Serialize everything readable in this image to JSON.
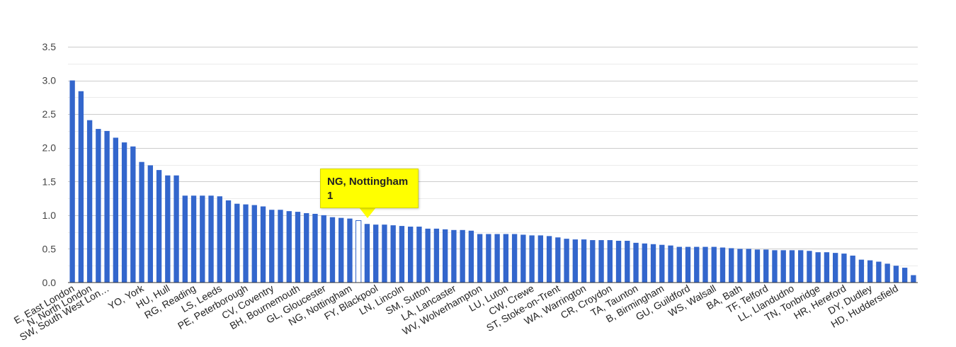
{
  "chart_data": {
    "type": "bar",
    "categories": [
      "E, East London",
      "",
      "N, North London",
      "",
      "SW, South West Lon…",
      "",
      "",
      "",
      "YO, York",
      "",
      "",
      "HU, Hull",
      "",
      "",
      "RG, Reading",
      "",
      "",
      "LS, Leeds",
      "",
      "",
      "PE, Peterborough",
      "",
      "",
      "CV, Coventry",
      "",
      "",
      "BH, Bournemouth",
      "",
      "",
      "GL, Gloucester",
      "",
      "",
      "NG, Nottingham",
      "",
      "",
      "FY, Blackpool",
      "",
      "",
      "LN, Lincoln",
      "",
      "",
      "SM, Sutton",
      "",
      "",
      "LA, Lancaster",
      "",
      "",
      "WV, Wolverhampton",
      "",
      "",
      "LU, Luton",
      "",
      "",
      "CW, Crewe",
      "",
      "",
      "ST, Stoke-on-Trent",
      "",
      "",
      "WA, Warrington",
      "",
      "",
      "CR, Croydon",
      "",
      "",
      "TA, Taunton",
      "",
      "",
      "B, Birmingham",
      "",
      "",
      "GU, Guildford",
      "",
      "",
      "WS, Walsall",
      "",
      "",
      "BA, Bath",
      "",
      "",
      "TF, Telford",
      "",
      "",
      "LL, Llandudno",
      "",
      "",
      "TN, Tonbridge",
      "",
      "",
      "HR, Hereford",
      "",
      "",
      "DY, Dudley",
      "",
      "",
      "HD, Huddersfield",
      "",
      ""
    ],
    "values": [
      3.0,
      2.84,
      2.41,
      2.28,
      2.25,
      2.15,
      2.08,
      2.02,
      1.79,
      1.74,
      1.67,
      1.59,
      1.59,
      1.29,
      1.29,
      1.29,
      1.29,
      1.28,
      1.22,
      1.17,
      1.16,
      1.15,
      1.13,
      1.08,
      1.08,
      1.06,
      1.05,
      1.03,
      1.02,
      1.0,
      0.97,
      0.96,
      0.95,
      0.92,
      0.87,
      0.86,
      0.86,
      0.85,
      0.84,
      0.83,
      0.83,
      0.8,
      0.8,
      0.79,
      0.78,
      0.78,
      0.77,
      0.72,
      0.72,
      0.72,
      0.72,
      0.72,
      0.71,
      0.7,
      0.7,
      0.69,
      0.67,
      0.65,
      0.64,
      0.64,
      0.63,
      0.63,
      0.63,
      0.62,
      0.62,
      0.59,
      0.58,
      0.57,
      0.56,
      0.55,
      0.53,
      0.53,
      0.53,
      0.53,
      0.53,
      0.52,
      0.51,
      0.5,
      0.5,
      0.49,
      0.49,
      0.48,
      0.48,
      0.48,
      0.48,
      0.47,
      0.45,
      0.45,
      0.44,
      0.43,
      0.4,
      0.34,
      0.33,
      0.31,
      0.28,
      0.25,
      0.22,
      0.11
    ],
    "highlight_index": 33,
    "ylim": [
      0,
      3.5
    ],
    "yticks": [
      "0.0",
      "0.5",
      "1.0",
      "1.5",
      "2.0",
      "2.5",
      "3.0",
      "3.5"
    ],
    "bar_color": "#3366cc",
    "grid": true,
    "legend": "none"
  },
  "tooltip": {
    "label": "NG, Nottingham",
    "value": "1",
    "bg_color": "#ffff00"
  }
}
